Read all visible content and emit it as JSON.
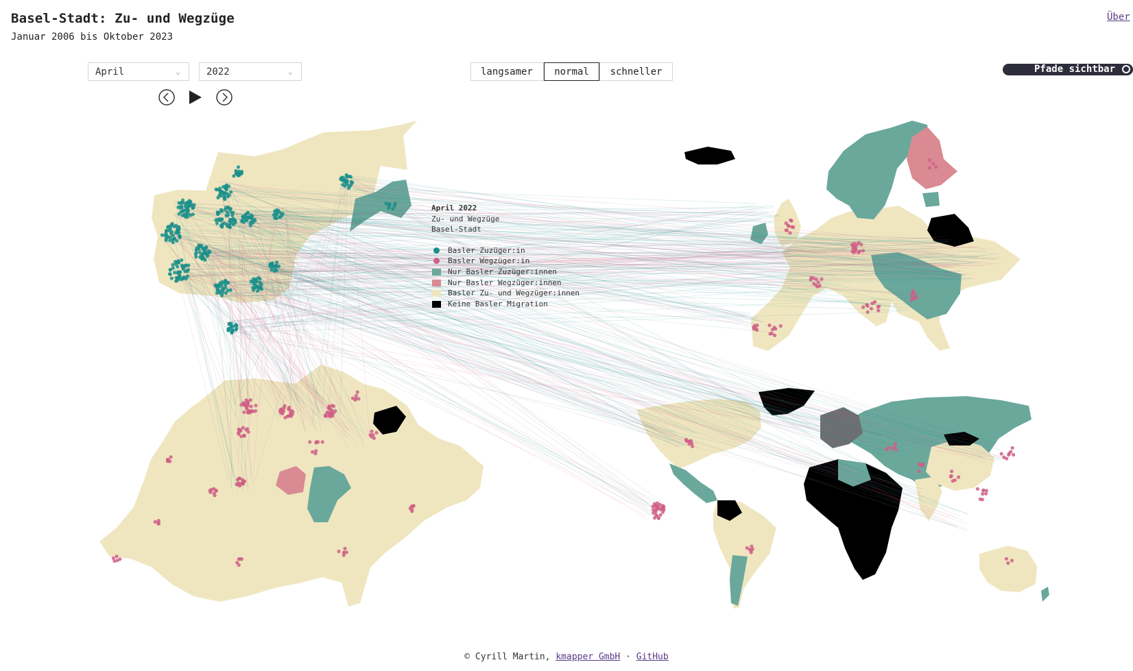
{
  "header": {
    "title": "Basel-Stadt: Zu- und Wegzüge",
    "subtitle": "Januar 2006 bis Oktober 2023",
    "about_link": "Über"
  },
  "controls": {
    "month": "April",
    "year": "2022",
    "speeds": [
      "langsamer",
      "normal",
      "schneller"
    ],
    "active_speed": "normal",
    "paths_toggle_label": "Pfade sichtbar",
    "paths_visible": true
  },
  "legend": {
    "heading": "April 2022",
    "line2": "Zu- und Wegzüge",
    "line3": "Basel-Stadt",
    "items": [
      {
        "label": "Basler Zuzüger:in",
        "symbol": "dot",
        "color": "#1a8f8a"
      },
      {
        "label": "Basler Wegzüger:in",
        "symbol": "dot",
        "color": "#cf5f86"
      },
      {
        "label": "Nur Basler Zuzüger:innen",
        "symbol": "square",
        "color": "#6aa89c"
      },
      {
        "label": "Nur Basler Wegzüger:innen",
        "symbol": "square",
        "color": "#d98a93"
      },
      {
        "label": "Basler Zu- und Wegzüger:innen",
        "symbol": "square",
        "color": "#efe6c0"
      },
      {
        "label": "Keine Basler Migration",
        "symbol": "square",
        "color": "#000000"
      }
    ]
  },
  "footer": {
    "copyright": "© Cyrill Martin,",
    "company_link": "kmapper GmbH",
    "separator": "·",
    "github_link": "GitHub"
  },
  "colors": {
    "zuzug_dot": "#1a8f8a",
    "wegzug_dot": "#cf5f86",
    "nur_zuzug": "#6aa89c",
    "nur_wegzug": "#d98a93",
    "beide": "#efe6c0",
    "keine": "#000000"
  }
}
